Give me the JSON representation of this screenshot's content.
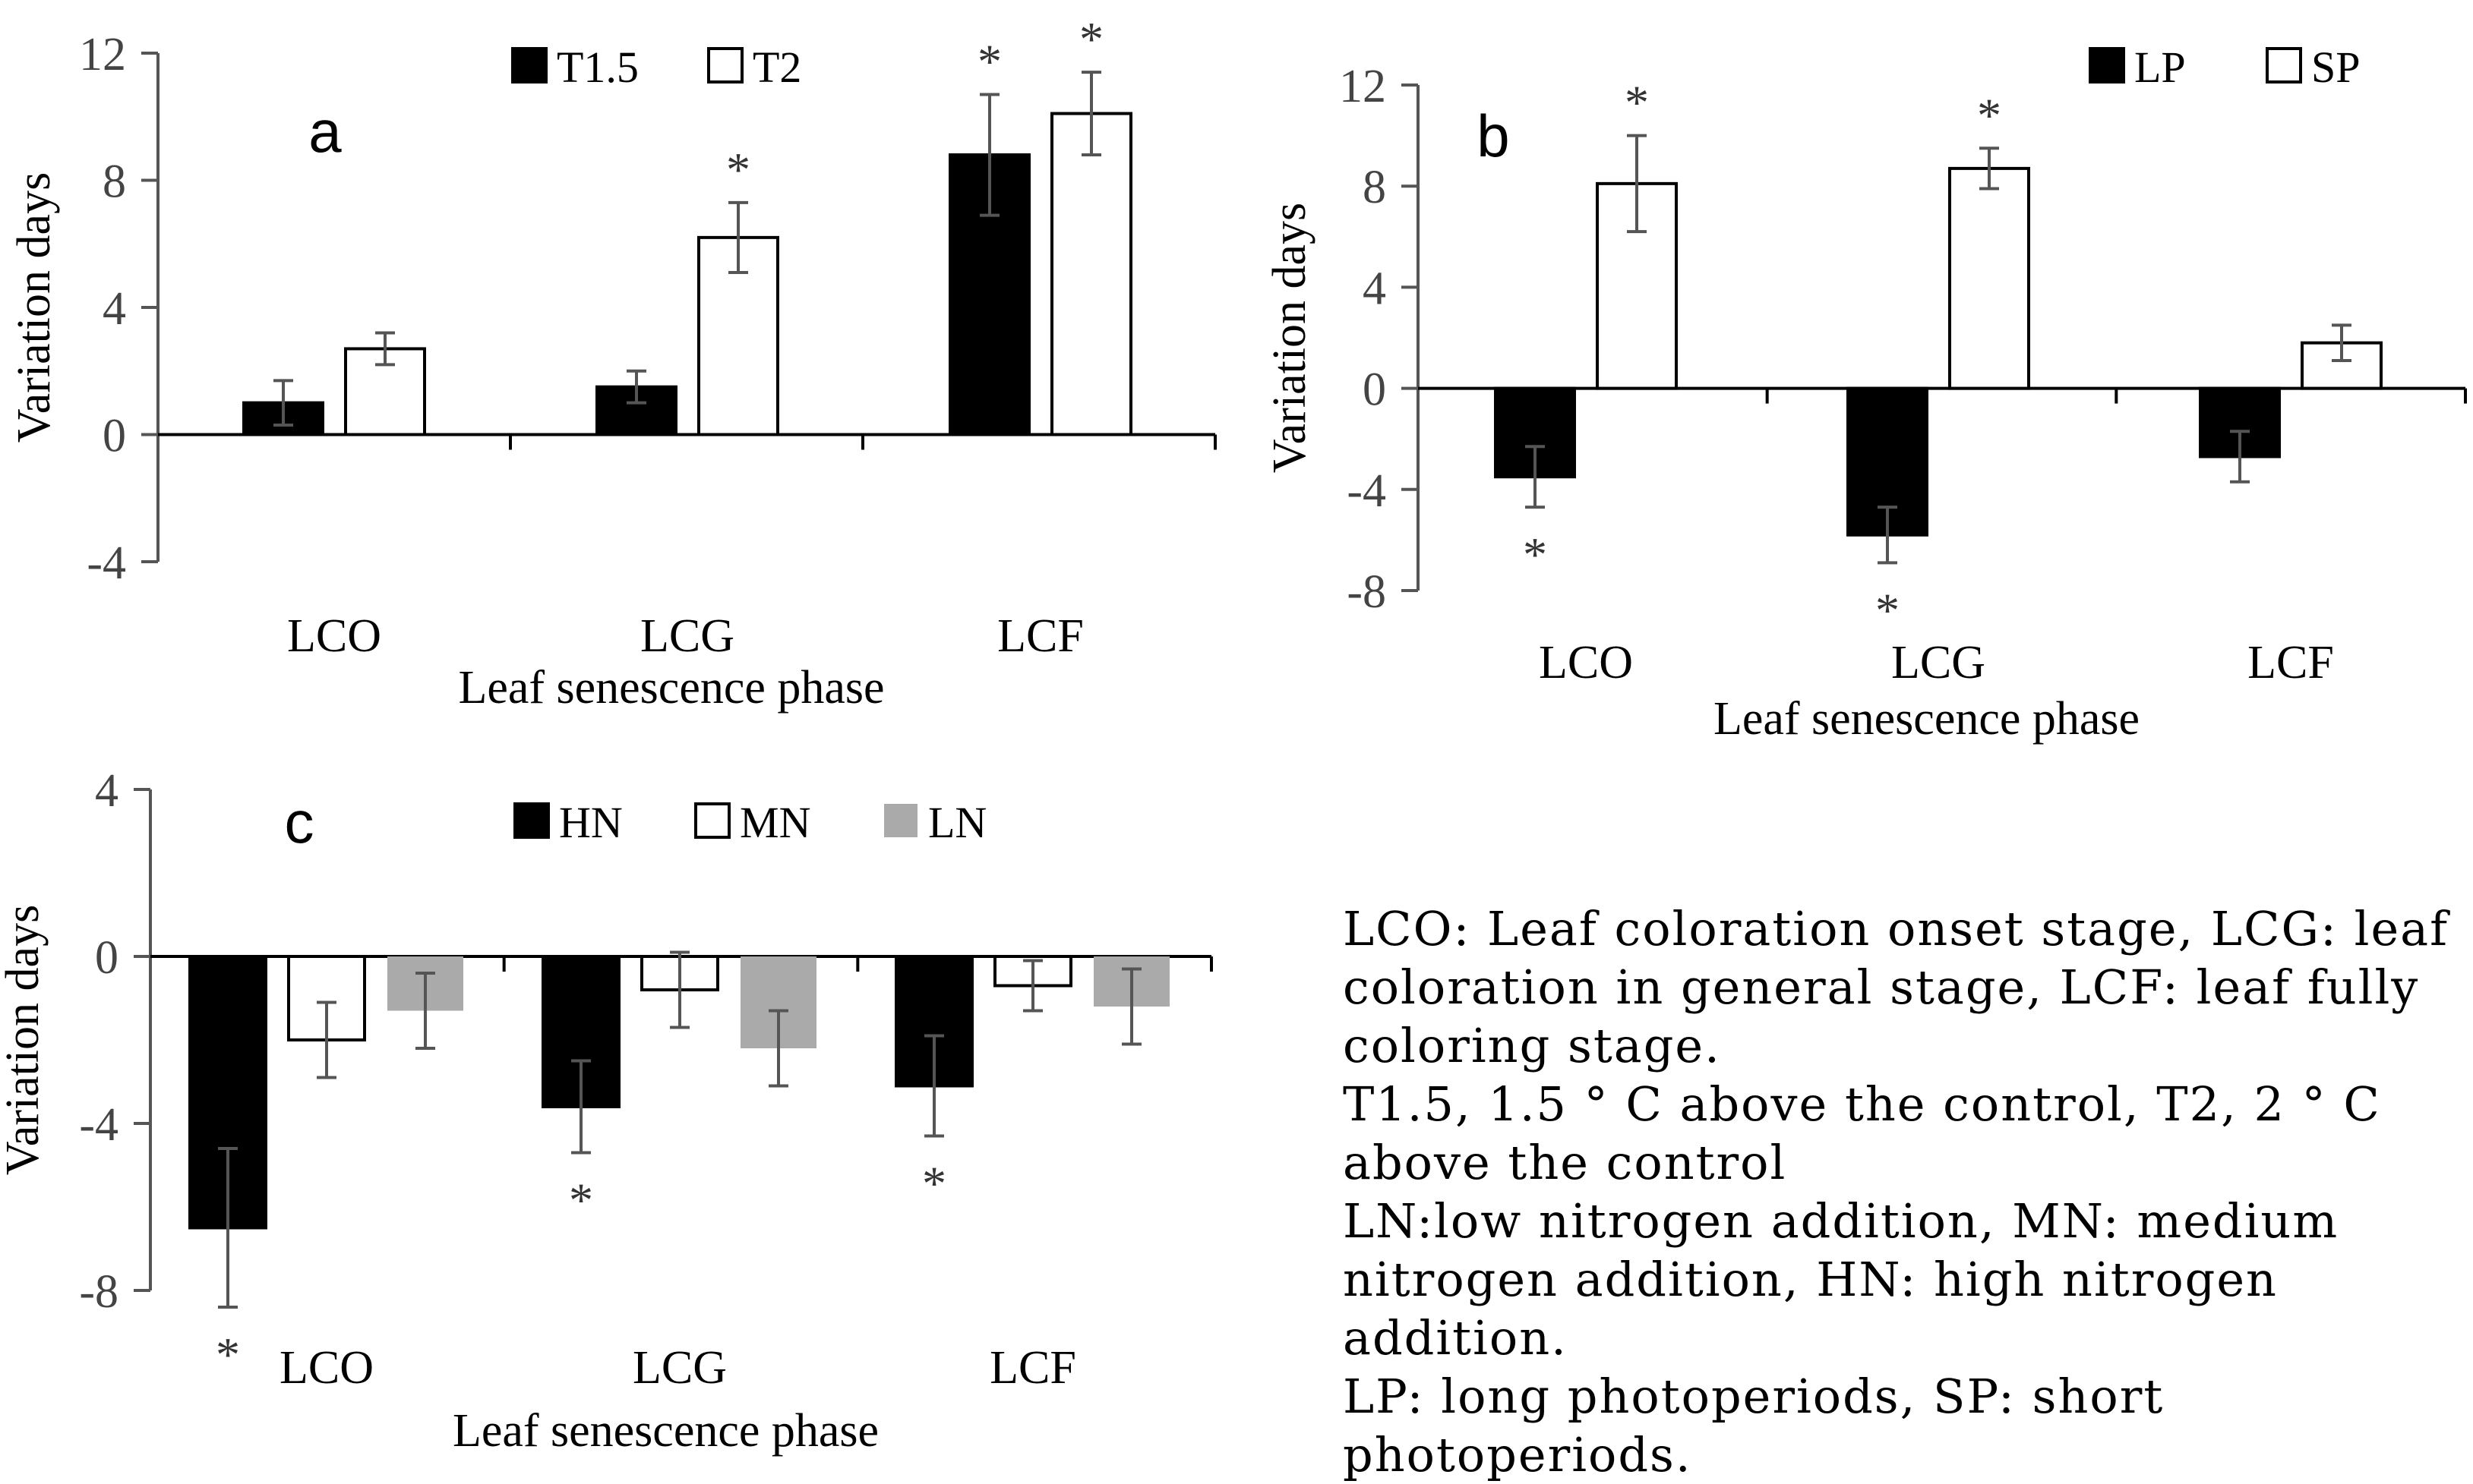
{
  "chart_data": [
    {
      "panel": "a",
      "type": "bar",
      "categories": [
        "LCO",
        "LCG",
        "LCF"
      ],
      "series": [
        {
          "name": "T1.5",
          "color": "#000000",
          "values": [
            1.0,
            1.5,
            8.8
          ],
          "errors": [
            0.7,
            0.5,
            1.9
          ]
        },
        {
          "name": "T2",
          "color": "#ffffff",
          "values": [
            2.7,
            6.2,
            10.1
          ],
          "errors": [
            0.5,
            1.1,
            1.3
          ]
        }
      ],
      "significant": [
        [
          false,
          false,
          true
        ],
        [
          false,
          true,
          true
        ]
      ],
      "xlabel": "Leaf senescence phase",
      "ylabel": "Variation days",
      "ylim": [
        -4,
        12
      ],
      "yticks": [
        -4,
        0,
        4,
        8,
        12
      ]
    },
    {
      "panel": "b",
      "type": "bar",
      "categories": [
        "LCO",
        "LCG",
        "LCF"
      ],
      "series": [
        {
          "name": "LP",
          "color": "#000000",
          "values": [
            -3.5,
            -5.8,
            -2.7
          ],
          "errors": [
            1.2,
            1.1,
            1.0
          ]
        },
        {
          "name": "SP",
          "color": "#ffffff",
          "values": [
            8.1,
            8.7,
            1.8
          ],
          "errors": [
            1.9,
            0.8,
            0.7
          ]
        }
      ],
      "significant": [
        [
          true,
          true,
          false
        ],
        [
          true,
          true,
          false
        ]
      ],
      "xlabel": "Leaf senescence phase",
      "ylabel": "Variation days",
      "ylim": [
        -8,
        12
      ],
      "yticks": [
        -8,
        -4,
        0,
        4,
        8,
        12
      ]
    },
    {
      "panel": "c",
      "type": "bar",
      "categories": [
        "LCO",
        "LCG",
        "LCF"
      ],
      "series": [
        {
          "name": "HN",
          "color": "#000000",
          "values": [
            -6.5,
            -3.6,
            -3.1
          ],
          "errors": [
            1.9,
            1.1,
            1.2
          ]
        },
        {
          "name": "MN",
          "color": "#ffffff",
          "values": [
            -2.0,
            -0.8,
            -0.7
          ],
          "errors": [
            0.9,
            0.9,
            0.6
          ]
        },
        {
          "name": "LN",
          "color": "#aaaaaa",
          "values": [
            -1.3,
            -2.2,
            -1.2
          ],
          "errors": [
            0.9,
            0.9,
            0.9
          ]
        }
      ],
      "significant": [
        [
          true,
          true,
          true
        ],
        [
          false,
          false,
          false
        ],
        [
          false,
          false,
          false
        ]
      ],
      "xlabel": "Leaf senescence phase",
      "ylabel": "Variation days",
      "ylim": [
        -8,
        4
      ],
      "yticks": [
        -8,
        -4,
        0,
        4
      ]
    }
  ],
  "notes": [
    "LCO: Leaf coloration onset stage, LCG: leaf coloration in general stage, LCF: leaf fully coloring stage.",
    "T1.5, 1.5 ° C above the control, T2, 2 ° C above the control",
    "LN:low nitrogen addition, MN: medium nitrogen addition, HN: high nitrogen addition.",
    "LP: long photoperiods, SP: short photoperiods."
  ]
}
